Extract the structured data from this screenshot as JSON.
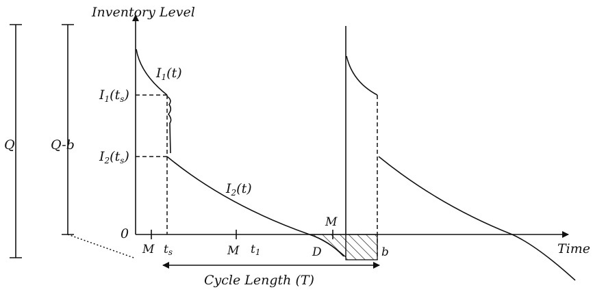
{
  "axes": {
    "y_label": "Inventory Level",
    "x_label": "Time",
    "origin_label": "0"
  },
  "left_brackets": {
    "q_label": "Q",
    "q_minus_b_label": "Q-b"
  },
  "level_labels": {
    "i1_ts_main": "I",
    "i1_ts_sub": "1",
    "i1_ts_arg": "(t",
    "i1_ts_arg_sub": "s",
    "i1_ts_close": ")",
    "i2_ts_main": "I",
    "i2_ts_sub": "2",
    "i2_ts_arg": "(t",
    "i2_ts_arg_sub": "s",
    "i2_ts_close": ")"
  },
  "curve_labels": {
    "i1_main": "I",
    "i1_sub": "1",
    "i1_arg": "(t)",
    "i2_main": "I",
    "i2_sub": "2",
    "i2_arg": "(t)"
  },
  "time_marks": {
    "m_first": "M",
    "ts_main": "t",
    "ts_sub": "s",
    "m_second": "M",
    "t1_main": "t",
    "t1_sub": "1",
    "d_label": "D",
    "m_third": "M",
    "b_label": "b"
  },
  "cycle": {
    "label": "Cycle Length (T)"
  }
}
